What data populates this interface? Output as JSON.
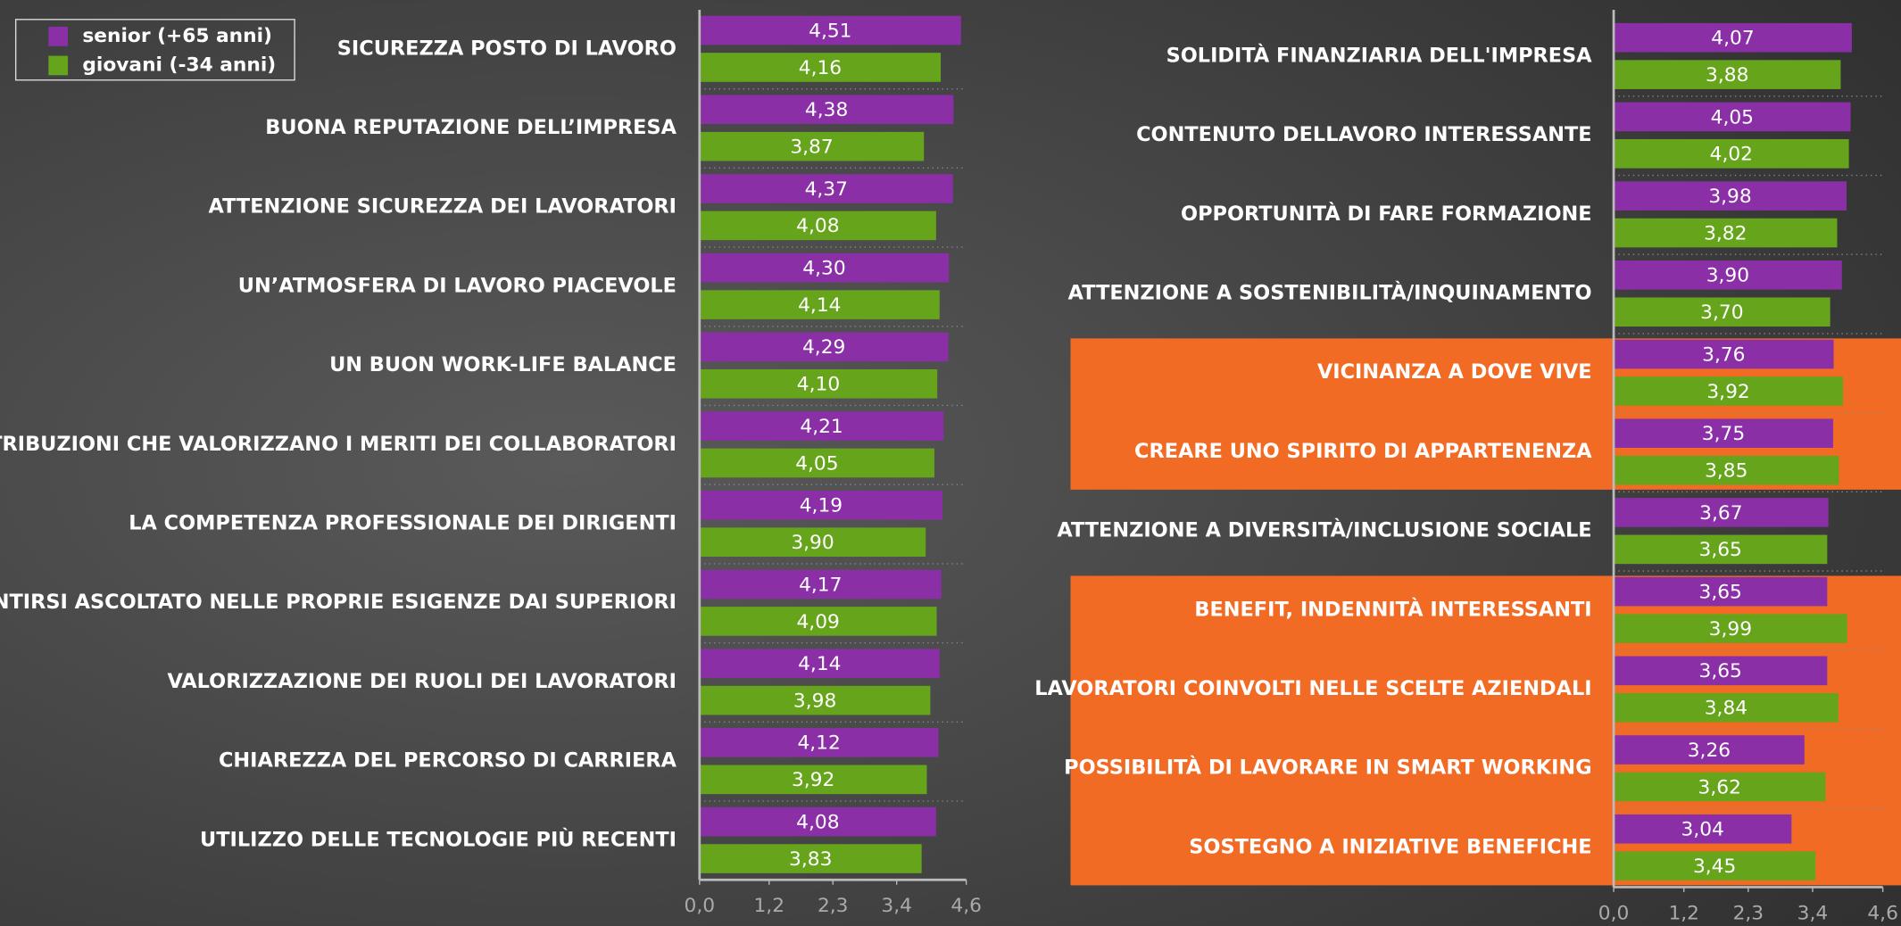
{
  "chart_data": [
    {
      "type": "bar",
      "orientation": "horizontal",
      "categories": [
        "SICUREZZA POSTO DI LAVORO",
        "BUONA REPUTAZIONE DELL’IMPRESA",
        "ATTENZIONE SICUREZZA DEI LAVORATORI",
        "UN’ATMOSFERA DI LAVORO PIACEVOLE",
        "UN BUON WORK-LIFE BALANCE",
        "RETRIBUZIONI CHE VALORIZZANO I MERITI DEI COLLABORATORI",
        "LA COMPETENZA PROFESSIONALE DEI DIRIGENTI",
        "SENTIRSI ASCOLTATO NELLE PROPRIE ESIGENZE DAI SUPERIORI",
        "VALORIZZAZIONE DEI RUOLI DEI LAVORATORI",
        "CHIAREZZA DEL PERCORSO DI CARRIERA",
        "UTILIZZO DELLE TECNOLOGIE PIÙ RECENTI"
      ],
      "series": [
        {
          "name": "senior (+65 anni)",
          "color": "#8a2fa6",
          "values": [
            4.51,
            4.38,
            4.37,
            4.3,
            4.29,
            4.21,
            4.19,
            4.17,
            4.14,
            4.12,
            4.08
          ],
          "value_labels": [
            "4,51",
            "4,38",
            "4,37",
            "4,30",
            "4,29",
            "4,21",
            "4,19",
            "4,17",
            "4,14",
            "4,12",
            "4,08"
          ]
        },
        {
          "name": "giovani (-34 anni)",
          "color": "#66a51b",
          "values": [
            4.16,
            3.87,
            4.08,
            4.14,
            4.1,
            4.05,
            3.9,
            4.09,
            3.98,
            3.92,
            3.83
          ],
          "value_labels": [
            "4,16",
            "3,87",
            "4,08",
            "4,14",
            "4,10",
            "4,05",
            "3,90",
            "4,09",
            "3,98",
            "3,92",
            "3,83"
          ]
        }
      ],
      "xlim": [
        0,
        4.6
      ],
      "xticks": [
        {
          "value": 0,
          "label": "0,0"
        },
        {
          "value": 1.2,
          "label": "1,2"
        },
        {
          "value": 2.3,
          "label": "2,3"
        },
        {
          "value": 3.4,
          "label": "3,4"
        },
        {
          "value": 4.6,
          "label": "4,6"
        }
      ],
      "legend": "top-left"
    },
    {
      "type": "bar",
      "orientation": "horizontal",
      "categories": [
        "SOLIDITÀ FINANZIARIA DELL'IMPRESA",
        "CONTENUTO DELLAVORO INTERESSANTE",
        "OPPORTUNITÀ DI FARE FORMAZIONE",
        "ATTENZIONE A SOSTENIBILITÀ/INQUINAMENTO",
        "VICINANZA A DOVE VIVE",
        "CREARE UNO SPIRITO DI APPARTENENZA",
        "ATTENZIONE A DIVERSITÀ/INCLUSIONE SOCIALE",
        "BENEFIT, INDENNITÀ INTERESSANTI",
        "LAVORATORI COINVOLTI NELLE SCELTE AZIENDALI",
        "POSSIBILITÀ DI LAVORARE IN SMART WORKING",
        "SOSTEGNO A INIZIATIVE BENEFICHE"
      ],
      "series": [
        {
          "color": "#8a2fa6",
          "values": [
            4.07,
            4.05,
            3.98,
            3.9,
            3.76,
            3.75,
            3.67,
            3.65,
            3.65,
            3.26,
            3.04
          ],
          "value_labels": [
            "4,07",
            "4,05",
            "3,98",
            "3,90",
            "3,76",
            "3,75",
            "3,67",
            "3,65",
            "3,65",
            "3,26",
            "3,04"
          ]
        },
        {
          "color": "#66a51b",
          "values": [
            3.88,
            4.02,
            3.82,
            3.7,
            3.92,
            3.85,
            3.65,
            3.99,
            3.84,
            3.62,
            3.45
          ],
          "value_labels": [
            "3,88",
            "4,02",
            "3,82",
            "3,70",
            "3,92",
            "3,85",
            "3,65",
            "3,99",
            "3,84",
            "3,62",
            "3,45"
          ]
        }
      ],
      "xlim": [
        0,
        4.6
      ],
      "xticks": [
        {
          "value": 0,
          "label": "0,0"
        },
        {
          "value": 1.2,
          "label": "1,2"
        },
        {
          "value": 2.3,
          "label": "2,3"
        },
        {
          "value": 3.4,
          "label": "3,4"
        },
        {
          "value": 4.6,
          "label": "4,6"
        }
      ],
      "highlighted": [
        4,
        5,
        7,
        8,
        9,
        10
      ],
      "highlight_color": "#f26b25"
    }
  ]
}
